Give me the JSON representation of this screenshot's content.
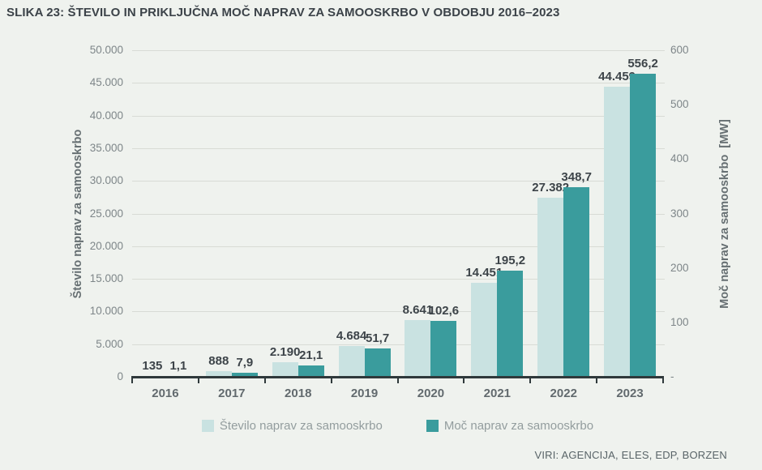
{
  "title": "SLIKA 23: ŠTEVILO IN PRIKLJUČNA MOČ NAPRAV ZA SAMOOSKRBO V OBDOBJU 2016–2023",
  "source": "VIRI: AGENCIJA, ELES, EDP, BORZEN",
  "colors": {
    "background": "#eff2ee",
    "count_bar": "#c9e2e1",
    "power_bar": "#3a9c9d",
    "gridline": "#d8dbd5",
    "axis_line": "#2f393b",
    "data_label": "#3d4449",
    "tick_label": "#7e8689",
    "year_label": "#626a6e",
    "axis_title": "#666f72",
    "legend_text": "#939d9e",
    "title_text": "#3c4349"
  },
  "chart_data": {
    "type": "bar",
    "categories": [
      "2016",
      "2017",
      "2018",
      "2019",
      "2020",
      "2021",
      "2022",
      "2023"
    ],
    "series": [
      {
        "name": "Število naprav za samooskrbo",
        "axis": "left",
        "color": "#c9e2e1",
        "values": [
          135,
          888,
          2190,
          4684,
          8641,
          14451,
          27382,
          44459
        ],
        "labels": [
          "135",
          "888",
          "2.190",
          "4.684",
          "8.641",
          "14.451",
          "27.382",
          "44.459"
        ]
      },
      {
        "name": "Moč naprav za samooskrbo",
        "axis": "right",
        "color": "#3a9c9d",
        "values": [
          1.1,
          7.9,
          21.1,
          51.7,
          102.6,
          195.2,
          348.7,
          556.2
        ],
        "labels": [
          "1,1",
          "7,9",
          "21,1",
          "51,7",
          "102,6",
          "195,2",
          "348,7",
          "556,2"
        ]
      }
    ],
    "left_axis": {
      "title": "Število naprav za samooskrbo",
      "min": 0,
      "max": 50000,
      "tick_step": 5000,
      "tick_labels": [
        "0",
        "5.000",
        "10.000",
        "15.000",
        "20.000",
        "25.000",
        "30.000",
        "35.000",
        "40.000",
        "45.000",
        "50.000"
      ]
    },
    "right_axis": {
      "title": "Moč naprav za samooskrbo  [MW]",
      "min": 0,
      "max": 600,
      "tick_step": 100,
      "tick_labels": [
        "-",
        "100",
        "200",
        "300",
        "400",
        "500",
        "600"
      ]
    },
    "grid": "horizontal",
    "legend_position": "bottom"
  },
  "legend": [
    {
      "label": "Število naprav za samooskrbo",
      "color": "#c9e2e1"
    },
    {
      "label": "Moč naprav za samooskrbo",
      "color": "#3a9c9d"
    }
  ]
}
